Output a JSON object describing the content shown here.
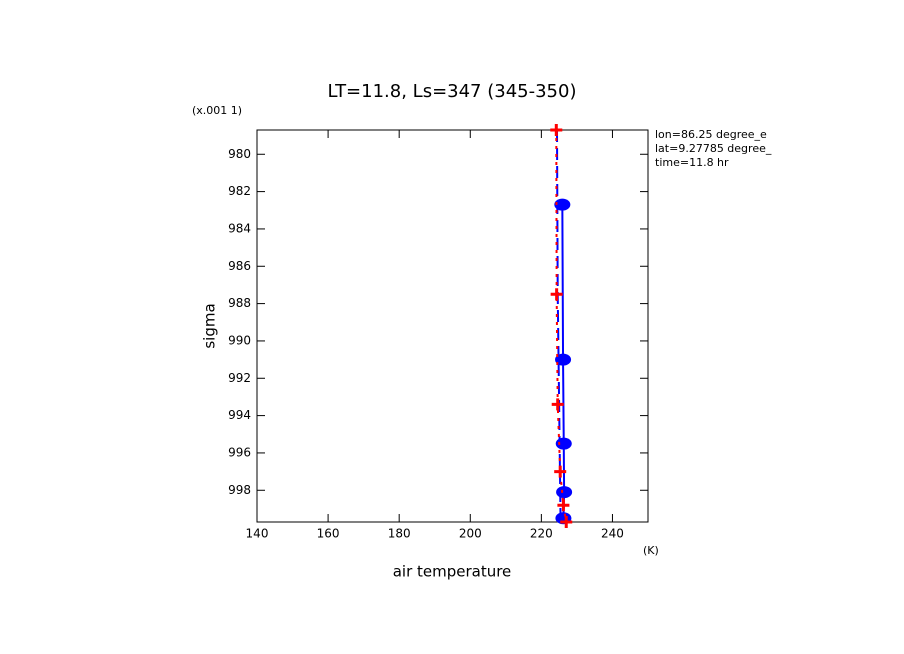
{
  "chart_data": {
    "type": "line",
    "title": "LT=11.8, Ls=347 (345-350)",
    "y_scale_label": "(x.001 1)",
    "ylabel": "sigma",
    "xlabel": "air temperature",
    "x_unit": "(K)",
    "annotations": [
      "lon=86.25 degree_e",
      "lat=9.27785 degree_",
      "time=11.8 hr"
    ],
    "xlim": [
      140,
      250
    ],
    "xticks": [
      140,
      160,
      180,
      200,
      220,
      240
    ],
    "ylim": [
      999.7,
      978.7
    ],
    "yticks": [
      980,
      982,
      984,
      986,
      988,
      990,
      992,
      994,
      996,
      998
    ],
    "series": [
      {
        "color": "#0000ff",
        "style": "solid",
        "marker": "dot",
        "x": [
          225.9,
          226.1,
          226.3,
          226.4,
          226.2
        ],
        "values": [
          982.7,
          991.0,
          995.5,
          998.1,
          999.5
        ]
      },
      {
        "color": "#0000ff",
        "style": "dashed",
        "marker": "none",
        "x": [
          224.4,
          224.6,
          225.0,
          225.4
        ],
        "values": [
          978.7,
          987.5,
          993.4,
          999.6
        ]
      },
      {
        "color": "#ff0000",
        "style": "dotted",
        "marker": "plus",
        "x": [
          224.2,
          224.3,
          224.6,
          225.3,
          226.2,
          227.0
        ],
        "values": [
          978.7,
          987.5,
          993.4,
          997.0,
          998.8,
          999.7
        ]
      }
    ]
  }
}
